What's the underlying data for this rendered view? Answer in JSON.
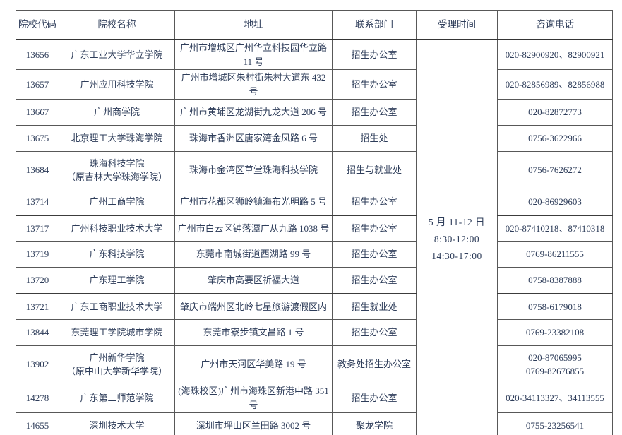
{
  "table": {
    "headers": {
      "code": "院校代码",
      "name": "院校名称",
      "address": "地址",
      "department": "联系部门",
      "time": "受理时间",
      "phone": "咨询电话"
    },
    "acceptance_time": "5 月 11-12 日\n8:30-12:00\n14:30-17:00",
    "rows": [
      {
        "code": "13656",
        "name": "广东工业大学华立学院",
        "address": "广州市增城区广州华立科技园华立路 11 号",
        "department": "招生办公室",
        "phone": "020-82900920、82900921"
      },
      {
        "code": "13657",
        "name": "广州应用科技学院",
        "address": "广州市增城区朱村街朱村大道东 432 号",
        "department": "招生办公室",
        "phone": "020-82856989、82856988"
      },
      {
        "code": "13667",
        "name": "广州商学院",
        "address": "广州市黄埔区龙湖街九龙大道 206 号",
        "department": "招生办公室",
        "phone": "020-82872773"
      },
      {
        "code": "13675",
        "name": "北京理工大学珠海学院",
        "address": "珠海市香洲区唐家湾金凤路 6 号",
        "department": "招生处",
        "phone": "0756-3622966"
      },
      {
        "code": "13684",
        "name": "珠海科技学院\n（原吉林大学珠海学院）",
        "address": "珠海市金湾区草堂珠海科技学院",
        "department": "招生与就业处",
        "phone": "0756-7626272"
      },
      {
        "code": "13714",
        "name": "广州工商学院",
        "address": "广州市花都区狮岭镇海布光明路 5 号",
        "department": "招生办公室",
        "phone": "020-86929603"
      },
      {
        "code": "13717",
        "name": "广州科技职业技术大学",
        "address": "广州市白云区钟落潭广从九路 1038 号",
        "department": "招生办公室",
        "phone": "020-87410218、87410318"
      },
      {
        "code": "13719",
        "name": "广东科技学院",
        "address": "东莞市南城街道西湖路 99 号",
        "department": "招生办公室",
        "phone": "0769-86211555"
      },
      {
        "code": "13720",
        "name": "广东理工学院",
        "address": "肇庆市高要区祈福大道",
        "department": "招生办公室",
        "phone": "0758-8387888"
      },
      {
        "code": "13721",
        "name": "广东工商职业技术大学",
        "address": "肇庆市端州区北岭七星旅游渡假区内",
        "department": "招生就业处",
        "phone": "0758-6179018"
      },
      {
        "code": "13844",
        "name": "东莞理工学院城市学院",
        "address": "东莞市寮步镇文昌路 1 号",
        "department": "招生办公室",
        "phone": "0769-23382108"
      },
      {
        "code": "13902",
        "name": "广州新华学院\n（原中山大学新华学院）",
        "address": "广州市天河区华美路 19 号",
        "department": "教务处招生办公室",
        "phone": "020-87065995\n0769-82676855"
      },
      {
        "code": "14278",
        "name": "广东第二师范学院",
        "address": "(海珠校区)广州市海珠区新港中路 351 号",
        "department": "招生办公室",
        "phone": "020-34113327、34113555"
      },
      {
        "code": "14655",
        "name": "深圳技术大学",
        "address": "深圳市坪山区兰田路 3002 号",
        "department": "聚龙学院",
        "phone": "0755-23256541"
      }
    ]
  },
  "colors": {
    "text": "#2e3d5a",
    "border": "#585858",
    "background": "#ffffff"
  }
}
